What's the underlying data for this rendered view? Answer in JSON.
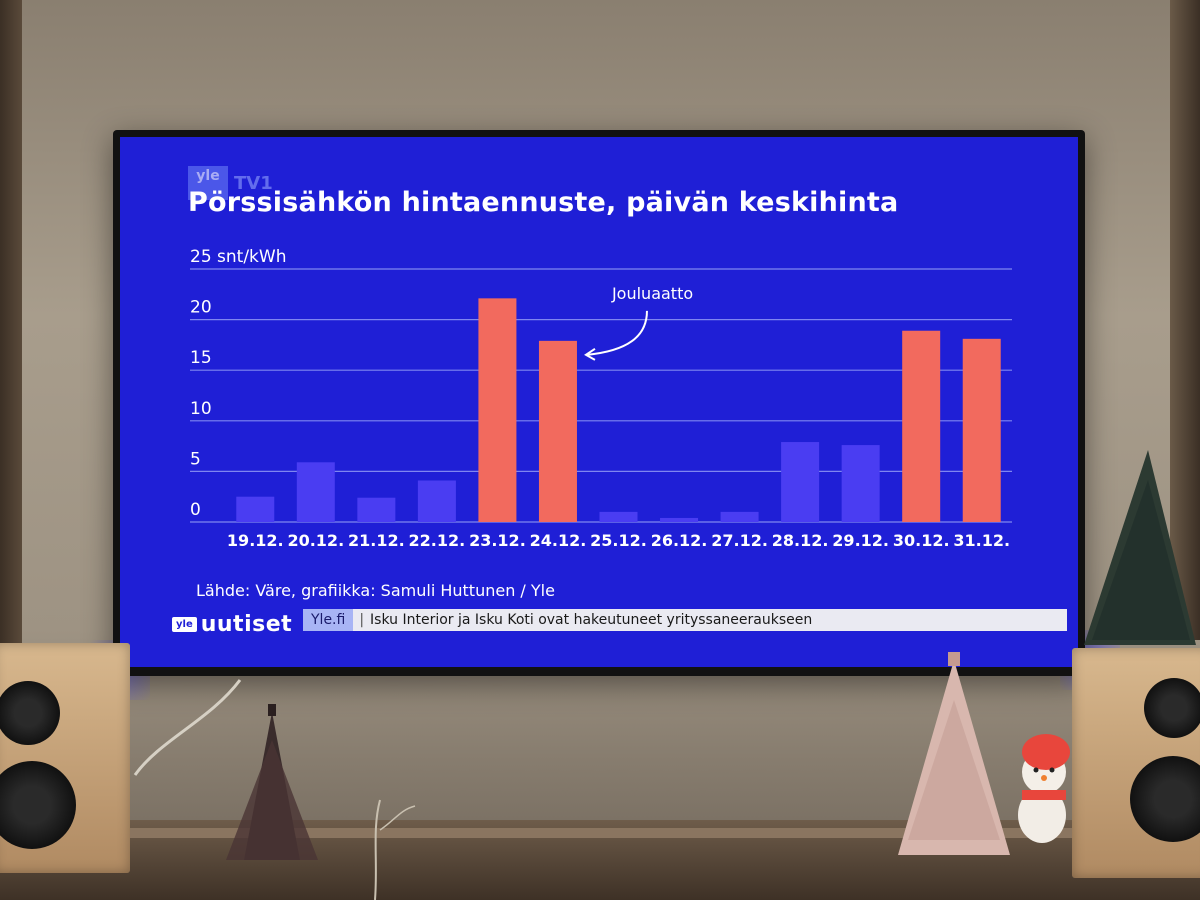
{
  "broadcast": {
    "channel_logo": "yle",
    "channel_name": "TV1",
    "title": "Pörssisähkön hintaennuste, päivän keskihinta",
    "source": "Lähde: Väre, grafiikka: Samuli Huttunen / Yle",
    "news_logo_box": "yle",
    "news_logo_text": "uutiset",
    "ticker_site": "Yle.fi",
    "ticker_separator": "|",
    "ticker_text": "Isku Interior ja Isku Koti ovat hakeutuneet yrityssaneeraukseen"
  },
  "chart_data": {
    "type": "bar",
    "title": "Pörssisähkön hintaennuste, päivän keskihinta",
    "ylabel": "snt/kWh",
    "ylim": [
      0,
      25
    ],
    "yticks": [
      0,
      5,
      10,
      15,
      20,
      25
    ],
    "grid": true,
    "categories": [
      "19.12.",
      "20.12.",
      "21.12.",
      "22.12.",
      "23.12.",
      "24.12.",
      "25.12.",
      "26.12.",
      "27.12.",
      "28.12.",
      "29.12.",
      "30.12.",
      "31.12."
    ],
    "values": [
      2.5,
      5.9,
      2.4,
      4.1,
      22.1,
      17.9,
      1.0,
      0.4,
      1.0,
      7.9,
      7.6,
      18.9,
      18.1
    ],
    "highlighted": [
      false,
      false,
      false,
      false,
      true,
      true,
      false,
      false,
      false,
      false,
      false,
      true,
      true
    ],
    "annotation": {
      "text": "Jouluaatto",
      "category": "24.12."
    },
    "colors": {
      "normal": "#4a3df2",
      "highlight": "#f26a5e",
      "grid": "#7f86f0",
      "text": "#ffffff",
      "background": "#1f1fd6"
    }
  }
}
